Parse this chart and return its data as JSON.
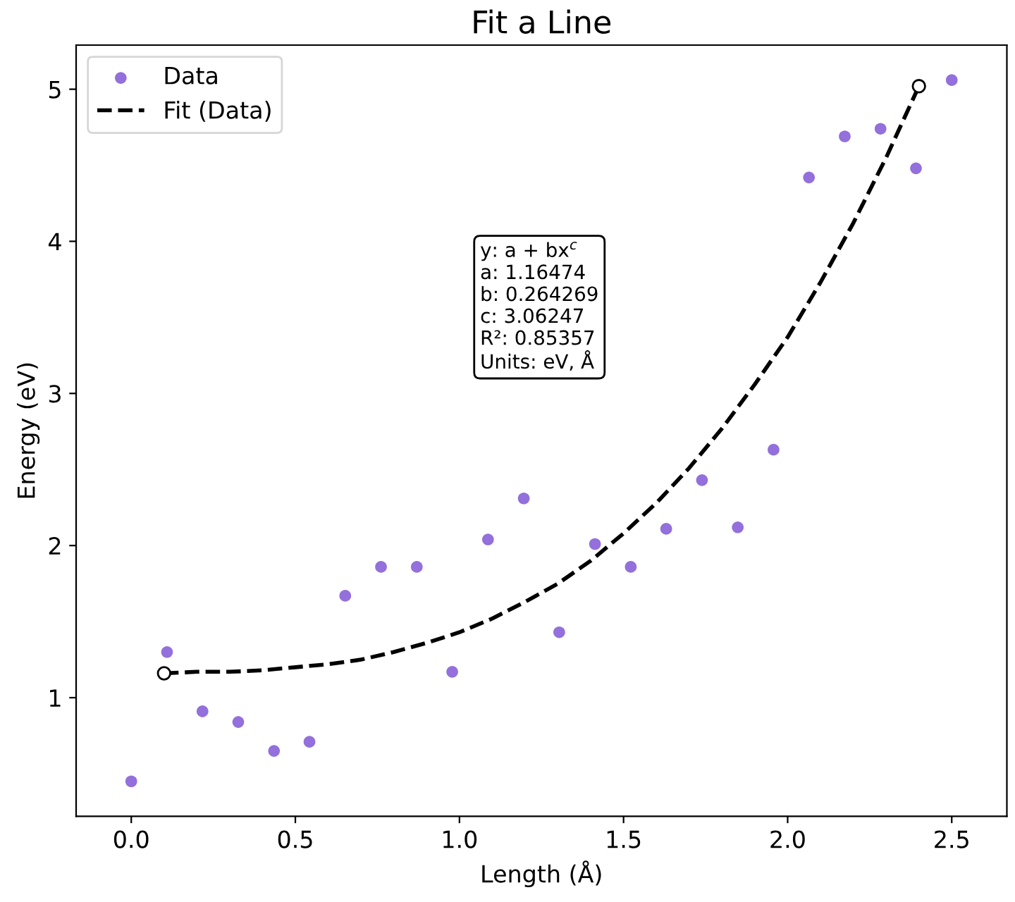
{
  "chart_data": {
    "type": "scatter",
    "title": "Fit a Line",
    "xlabel": "Length (Å)",
    "ylabel": "Energy (eV)",
    "series": [
      {
        "name": "Data",
        "color": "#9370db",
        "marker": "circle",
        "x": [
          0,
          0.109,
          0.217,
          0.326,
          0.435,
          0.543,
          0.652,
          0.761,
          0.87,
          0.978,
          1.087,
          1.196,
          1.304,
          1.413,
          1.522,
          1.63,
          1.739,
          1.848,
          1.957,
          2.065,
          2.174,
          2.283,
          2.391,
          2.5
        ],
        "values": [
          0.45,
          1.3,
          0.91,
          0.84,
          0.65,
          0.71,
          1.67,
          1.86,
          1.86,
          1.17,
          2.04,
          2.31,
          1.43,
          2.01,
          1.86,
          2.11,
          2.43,
          2.12,
          2.63,
          4.42,
          4.69,
          4.74,
          4.48,
          5.06
        ]
      },
      {
        "name": "Fit (Data)",
        "type": "line",
        "color": "#000000",
        "line_style": "dashed",
        "x": [
          0.1,
          0.2,
          0.3,
          0.4,
          0.5,
          0.6,
          0.7,
          0.8,
          0.9,
          1.0,
          1.1,
          1.2,
          1.3,
          1.4,
          1.5,
          1.6,
          1.7,
          1.8,
          1.9,
          2.0,
          2.1,
          2.2,
          2.3,
          2.4
        ],
        "values": [
          1.16,
          1.17,
          1.17,
          1.18,
          1.2,
          1.22,
          1.25,
          1.3,
          1.36,
          1.43,
          1.52,
          1.63,
          1.75,
          1.9,
          2.08,
          2.28,
          2.51,
          2.77,
          3.06,
          3.37,
          3.73,
          4.12,
          4.55,
          5.02
        ]
      },
      {
        "color": "#ffffff",
        "marker": "circle",
        "x": [
          0.1,
          2.4
        ],
        "values": [
          1.16,
          5.02
        ]
      }
    ],
    "annotations": [
      "y: a + bx$^{c}$\na: 1.16474\nb: 0.264269\nc: 3.06247\nR²: 0.85357\nUnits: eV, Å"
    ],
    "xlim": [
      -0.168,
      2.668
    ],
    "ylim": [
      0.22,
      5.29
    ],
    "xticks": [
      {
        "value": 0,
        "label": "0.0"
      },
      0.5,
      {
        "value": 1,
        "label": "1.0"
      },
      1.5,
      {
        "value": 2,
        "label": "2.0"
      },
      2.5
    ],
    "yticks": [
      1,
      2,
      3,
      4,
      5
    ],
    "grid": false,
    "legend": "top left"
  }
}
